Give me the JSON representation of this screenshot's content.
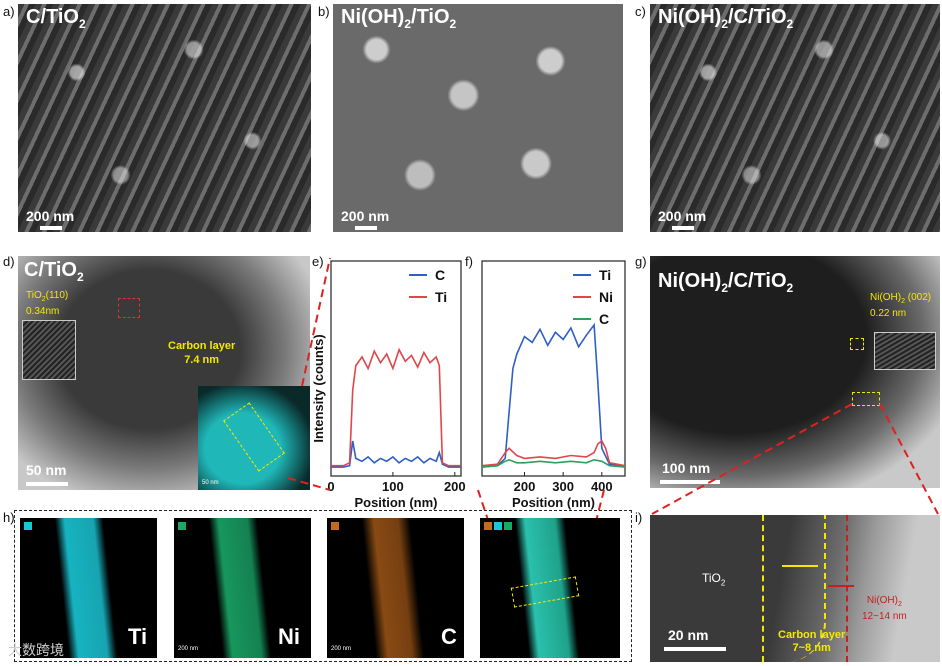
{
  "panels": {
    "a": {
      "letter": "a)",
      "title": "C/TiO",
      "sub": "2",
      "scale": "200 nm"
    },
    "b": {
      "letter": "b)",
      "title_pre": "Ni(OH)",
      "sub1": "2",
      "title_mid": "/TiO",
      "sub2": "2",
      "scale": "200 nm"
    },
    "c": {
      "letter": "c)",
      "title_pre": "Ni(OH)",
      "sub1": "2",
      "title_mid": "/C/TiO",
      "sub2": "2",
      "scale": "200 nm"
    },
    "d": {
      "letter": "d)",
      "title": "C/TiO",
      "sub": "2",
      "inset_line1": "TiO",
      "inset_sub": "2",
      "inset_line1b": "(110)",
      "inset_line2": "0.34nm",
      "carbon_label": "Carbon layer",
      "carbon_value": "7.4 nm",
      "scale": "50 nm",
      "map_scale": "50 nm"
    },
    "e": {
      "letter": "e)"
    },
    "f": {
      "letter": "f)"
    },
    "g": {
      "letter": "g)",
      "title_pre": "Ni(OH)",
      "sub1": "2",
      "title_mid": "/C/TiO",
      "sub2": "2",
      "inset_pre": "Ni(OH)",
      "inset_sub": "2",
      "inset_post": " (002)",
      "inset_value": "0.22 nm",
      "scale": "100 nm"
    },
    "h": {
      "letter": "h)",
      "maps": [
        {
          "label": "Ti",
          "scale": "",
          "color": "#19c7d6"
        },
        {
          "label": "Ni",
          "scale": "200 nm",
          "color": "#1aa867"
        },
        {
          "label": "C",
          "scale": "200 nm",
          "color": "#c46a1c"
        },
        {
          "label": "",
          "scale": "",
          "color": "#2fd6c0"
        }
      ],
      "watermark": "大数跨境"
    },
    "i": {
      "letter": "i)",
      "tio2_pre": "TiO",
      "tio2_sub": "2",
      "ni_pre": "Ni(OH)",
      "ni_sub": "2",
      "ni_value": "12~14 nm",
      "carbon_label": "Carbon layer",
      "carbon_value": "7~8 nm",
      "scale": "20 nm"
    }
  },
  "chart_data": [
    {
      "type": "line",
      "panel": "e",
      "xlabel": "Position (nm)",
      "ylabel": "Intensity (counts)",
      "xlim": [
        0,
        210
      ],
      "xticks": [
        0,
        100,
        200
      ],
      "xtick_labels": [
        "0",
        "100",
        "200"
      ],
      "legend_position": "top-right",
      "series": [
        {
          "name": "C",
          "color": "#2f5fc4",
          "x": [
            0,
            20,
            30,
            35,
            40,
            50,
            60,
            70,
            80,
            90,
            100,
            110,
            120,
            130,
            140,
            150,
            160,
            170,
            175,
            180,
            190,
            210
          ],
          "y": [
            0.02,
            0.02,
            0.03,
            0.2,
            0.08,
            0.06,
            0.09,
            0.05,
            0.08,
            0.06,
            0.09,
            0.05,
            0.08,
            0.06,
            0.09,
            0.05,
            0.08,
            0.06,
            0.12,
            0.04,
            0.02,
            0.02
          ]
        },
        {
          "name": "Ti",
          "color": "#e0464a",
          "x": [
            0,
            20,
            30,
            35,
            40,
            50,
            60,
            70,
            80,
            90,
            100,
            110,
            120,
            130,
            140,
            150,
            160,
            170,
            175,
            180,
            190,
            210
          ],
          "y": [
            0.03,
            0.03,
            0.05,
            0.55,
            0.72,
            0.78,
            0.7,
            0.82,
            0.74,
            0.8,
            0.7,
            0.83,
            0.75,
            0.79,
            0.71,
            0.81,
            0.74,
            0.78,
            0.72,
            0.05,
            0.03,
            0.03
          ]
        }
      ]
    },
    {
      "type": "line",
      "panel": "f",
      "xlabel": "Position (nm)",
      "ylabel": "",
      "xlim": [
        90,
        460
      ],
      "xticks": [
        200,
        300,
        400
      ],
      "xtick_labels": [
        "200",
        "300",
        "400"
      ],
      "legend_position": "top-right",
      "series": [
        {
          "name": "Ti",
          "color": "#2f5fc4",
          "x": [
            90,
            130,
            150,
            160,
            170,
            180,
            200,
            220,
            240,
            260,
            280,
            300,
            320,
            340,
            360,
            380,
            390,
            400,
            420,
            460
          ],
          "y": [
            0.02,
            0.03,
            0.08,
            0.4,
            0.7,
            0.8,
            0.92,
            0.88,
            0.97,
            0.86,
            0.95,
            0.9,
            0.98,
            0.85,
            0.93,
            1.0,
            0.6,
            0.15,
            0.04,
            0.03
          ]
        },
        {
          "name": "Ni",
          "color": "#e0464a",
          "x": [
            90,
            130,
            150,
            160,
            180,
            200,
            240,
            280,
            320,
            360,
            380,
            390,
            400,
            410,
            420,
            460
          ],
          "y": [
            0.03,
            0.04,
            0.12,
            0.15,
            0.1,
            0.08,
            0.09,
            0.08,
            0.1,
            0.09,
            0.12,
            0.18,
            0.2,
            0.15,
            0.05,
            0.03
          ]
        },
        {
          "name": "C",
          "color": "#2da05a",
          "x": [
            90,
            130,
            150,
            160,
            180,
            200,
            240,
            280,
            320,
            360,
            380,
            400,
            420,
            460
          ],
          "y": [
            0.02,
            0.03,
            0.06,
            0.07,
            0.05,
            0.05,
            0.06,
            0.05,
            0.06,
            0.05,
            0.07,
            0.06,
            0.03,
            0.02
          ]
        }
      ]
    }
  ]
}
